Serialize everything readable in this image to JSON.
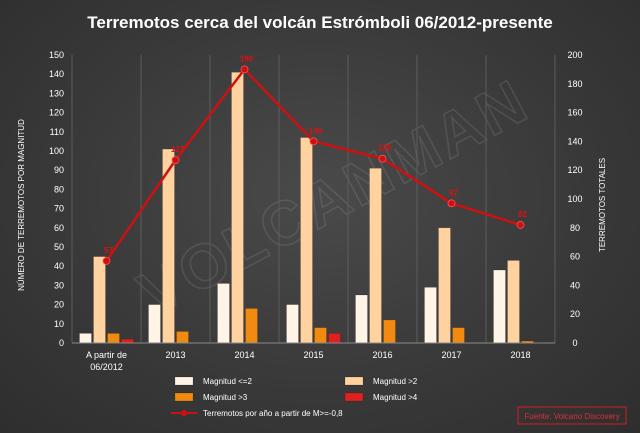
{
  "chart_data": {
    "type": "bar",
    "title": "Terremotos cerca del volcán Estrómboli 06/2012-presente",
    "ylabel_left": "NÚMERO DE TERREMOTOS POR MAGNITUD",
    "ylabel_right": "TERREMOTOS TOTALES",
    "categories": [
      "A partir de 06/2012",
      "2013",
      "2014",
      "2015",
      "2016",
      "2017",
      "2018"
    ],
    "ylim_left": [
      0,
      150
    ],
    "ylim_right": [
      0,
      200
    ],
    "yticks_left": [
      0,
      10,
      20,
      30,
      40,
      50,
      60,
      70,
      80,
      90,
      100,
      110,
      120,
      130,
      140,
      150
    ],
    "yticks_right": [
      0,
      20,
      40,
      60,
      80,
      100,
      120,
      140,
      160,
      180,
      200
    ],
    "series": [
      {
        "name": "Magnitud <=2",
        "axis": "left",
        "color": "#fff4e6",
        "values": [
          5,
          20,
          31,
          20,
          25,
          29,
          38
        ]
      },
      {
        "name": "Magnitud >2",
        "axis": "left",
        "color": "#ffd2a0",
        "values": [
          45,
          101,
          141,
          107,
          91,
          60,
          43
        ]
      },
      {
        "name": "Magnitud >3",
        "axis": "left",
        "color": "#f08a10",
        "values": [
          5,
          6,
          18,
          8,
          12,
          8,
          1
        ]
      },
      {
        "name": "Magnitud >4",
        "axis": "left",
        "color": "#e02020",
        "values": [
          2,
          0,
          0,
          5,
          0,
          0,
          0
        ]
      },
      {
        "name": "Terremotos por año a partir de M>=-0,8",
        "axis": "right",
        "type": "line",
        "color": "#cc1111",
        "values": [
          57,
          127,
          190,
          140,
          128,
          97,
          82
        ]
      }
    ],
    "line_labels": [
      "57",
      "127",
      "190",
      "140",
      "128",
      "97",
      "82"
    ],
    "legend_position": "bottom",
    "grid": true
  },
  "watermark": "VOLCANMAN",
  "source": "Fuente: Volcano Discovery"
}
